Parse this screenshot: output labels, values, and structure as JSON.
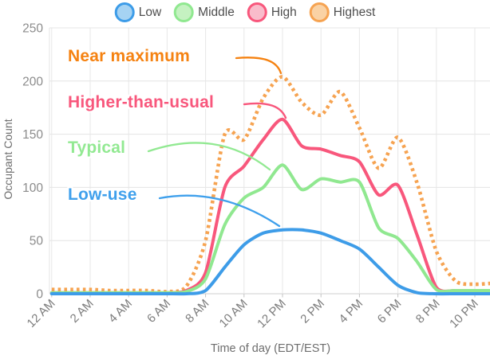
{
  "chart_data": {
    "type": "line",
    "title": "",
    "xlabel": "Time of day (EDT/EST)",
    "ylabel": "Occupant Count",
    "ylim": [
      0,
      250
    ],
    "y_ticks": [
      0,
      50,
      100,
      150,
      200,
      250
    ],
    "x_tick_every": 2,
    "grid": true,
    "legend_position": "top",
    "categories": [
      "12 AM",
      "1 AM",
      "2 AM",
      "3 AM",
      "4 AM",
      "5 AM",
      "6 AM",
      "7 AM",
      "8 AM",
      "9 AM",
      "10 AM",
      "11 AM",
      "12 PM",
      "1 PM",
      "2 PM",
      "3 PM",
      "4 PM",
      "5 PM",
      "6 PM",
      "7 PM",
      "8 PM",
      "9 PM",
      "10 PM",
      "11 PM"
    ],
    "series": [
      {
        "name": "Low",
        "color": "#3d9ce8",
        "legend_fill": "#a6d3f3",
        "style": "solid",
        "values": [
          0,
          0,
          0,
          0,
          0,
          0,
          0,
          0,
          3,
          25,
          46,
          57,
          60,
          60,
          57,
          50,
          42,
          25,
          8,
          1,
          0,
          0,
          0,
          0
        ]
      },
      {
        "name": "Middle",
        "color": "#90e890",
        "legend_fill": "#c5f2c1",
        "style": "solid",
        "values": [
          1,
          1,
          1,
          1,
          1,
          1,
          1,
          2,
          14,
          65,
          90,
          100,
          121,
          98,
          108,
          105,
          105,
          62,
          52,
          30,
          4,
          3,
          3,
          3
        ]
      },
      {
        "name": "High",
        "color": "#f8577c",
        "legend_fill": "#f9bccb",
        "style": "solid",
        "values": [
          1,
          1,
          1,
          1,
          1,
          1,
          1,
          3,
          20,
          100,
          120,
          145,
          164,
          139,
          136,
          130,
          124,
          93,
          102,
          55,
          6,
          3,
          3,
          3
        ]
      },
      {
        "name": "Highest",
        "color": "#f6a351",
        "legend_fill": "#fad2a4",
        "style": "dotted",
        "values": [
          4,
          4,
          4,
          3,
          3,
          3,
          2,
          7,
          50,
          150,
          145,
          184,
          204,
          180,
          168,
          190,
          156,
          118,
          147,
          104,
          40,
          12,
          9,
          10
        ]
      }
    ],
    "annotations": [
      {
        "id": "near-maximum",
        "label": "Near maximum",
        "color": "#f58211",
        "series": "Highest"
      },
      {
        "id": "higher-than-usual",
        "label": "Higher-than-usual",
        "color": "#f8577c",
        "series": "High"
      },
      {
        "id": "typical",
        "label": "Typical",
        "color": "#92e992",
        "series": "Middle"
      },
      {
        "id": "low-use",
        "label": "Low-use",
        "color": "#3fa0ec",
        "series": "Low"
      }
    ]
  }
}
